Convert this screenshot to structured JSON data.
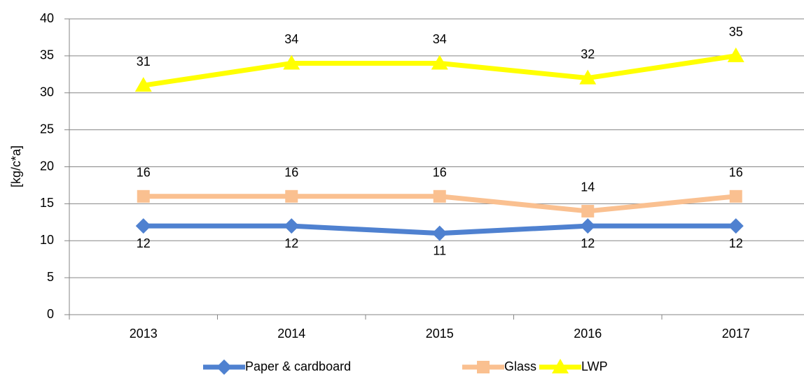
{
  "chart_data": {
    "type": "line",
    "categories": [
      "2013",
      "2014",
      "2015",
      "2016",
      "2017"
    ],
    "y_label": "[kg/c*a]",
    "ylim": [
      0,
      40
    ],
    "yticks": [
      0,
      5,
      10,
      15,
      20,
      25,
      30,
      35,
      40
    ],
    "grid": true,
    "legend": "bottom",
    "series": [
      {
        "name": "Paper & cardboard",
        "color": "#4f81d0",
        "marker": "diamond",
        "values": [
          12,
          12,
          11,
          12,
          12
        ]
      },
      {
        "name": "Glass",
        "color": "#fac090",
        "marker": "square",
        "values": [
          16,
          16,
          16,
          14,
          16
        ]
      },
      {
        "name": "LWP",
        "color": "#ffff00",
        "marker": "triangle",
        "values": [
          31,
          34,
          34,
          32,
          35
        ]
      }
    ]
  }
}
